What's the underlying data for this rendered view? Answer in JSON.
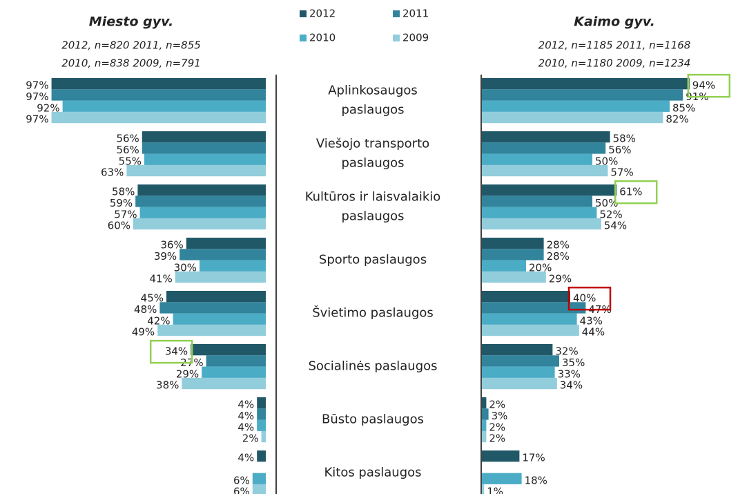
{
  "chart_data": {
    "type": "butterfly-bar",
    "categories": [
      [
        "Aplinkosaugos",
        "paslaugos"
      ],
      [
        "Viešojo transporto",
        "paslaugos"
      ],
      [
        "Kultūros ir laisvalaikio",
        "paslaugos"
      ],
      [
        "Sporto paslaugos"
      ],
      [
        "Švietimo paslaugos"
      ],
      [
        "Socialinės paslaugos"
      ],
      [
        "Būsto paslaugos"
      ],
      [
        "Kitos paslaugos"
      ]
    ],
    "series": [
      {
        "name": "2012",
        "color": "#215868"
      },
      {
        "name": "2011",
        "color": "#31849b"
      },
      {
        "name": "2010",
        "color": "#4bacc6"
      },
      {
        "name": "2009",
        "color": "#92cddc"
      }
    ],
    "panels": [
      {
        "title": "Miesto gyv.",
        "subtitle": [
          "2012, n=820 2011, n=855",
          "2010, n=838 2009, n=791"
        ],
        "xlim": [
          0,
          100
        ],
        "direction": "left",
        "values": [
          [
            97,
            56,
            58,
            36,
            45,
            34,
            4,
            4
          ],
          [
            97,
            56,
            59,
            39,
            48,
            27,
            4,
            null
          ],
          [
            92,
            55,
            57,
            30,
            42,
            29,
            4,
            6
          ],
          [
            97,
            63,
            60,
            41,
            49,
            38,
            2,
            6
          ]
        ],
        "value_labels": [
          [
            "97%",
            "56%",
            "58%",
            "36%",
            "45%",
            "34%",
            "4%",
            "4%"
          ],
          [
            "97%",
            "56%",
            "59%",
            "39%",
            "48%",
            "27%",
            "4%",
            null
          ],
          [
            "92%",
            "55%",
            "57%",
            "30%",
            "42%",
            "29%",
            "4%",
            "6%"
          ],
          [
            "97%",
            "63%",
            "60%",
            "41%",
            "49%",
            "38%",
            "2%",
            "6%"
          ]
        ]
      },
      {
        "title": "Kaimo gyv.",
        "subtitle": [
          "2012, n=1185 2011, n=1168",
          "2010, n=1180 2009, n=1234"
        ],
        "xlim": [
          0,
          100
        ],
        "direction": "right",
        "values": [
          [
            94,
            58,
            61,
            28,
            40,
            32,
            2,
            17
          ],
          [
            91,
            56,
            50,
            28,
            47,
            35,
            3,
            null
          ],
          [
            85,
            50,
            52,
            20,
            43,
            33,
            2,
            18
          ],
          [
            82,
            57,
            54,
            29,
            44,
            34,
            2,
            1
          ]
        ],
        "value_labels": [
          [
            "94%",
            "58%",
            "61%",
            "28%",
            "40%",
            "32%",
            "2%",
            "17%"
          ],
          [
            "91%",
            "56%",
            "50%",
            "28%",
            "47%",
            "35%",
            "3%",
            null
          ],
          [
            "85%",
            "50%",
            "52%",
            "20%",
            "43%",
            "33%",
            "2%",
            "18%"
          ],
          [
            "82%",
            "57%",
            "54%",
            "29%",
            "44%",
            "34%",
            "2%",
            "1%"
          ]
        ]
      }
    ],
    "highlights": [
      {
        "panel": 0,
        "series": 0,
        "category": 5,
        "color": "#92d050"
      },
      {
        "panel": 1,
        "series": 0,
        "category": 0,
        "color": "#92d050"
      },
      {
        "panel": 1,
        "series": 0,
        "category": 2,
        "color": "#92d050"
      },
      {
        "panel": 1,
        "series": 0,
        "category": 4,
        "color": "#c00000"
      }
    ]
  }
}
